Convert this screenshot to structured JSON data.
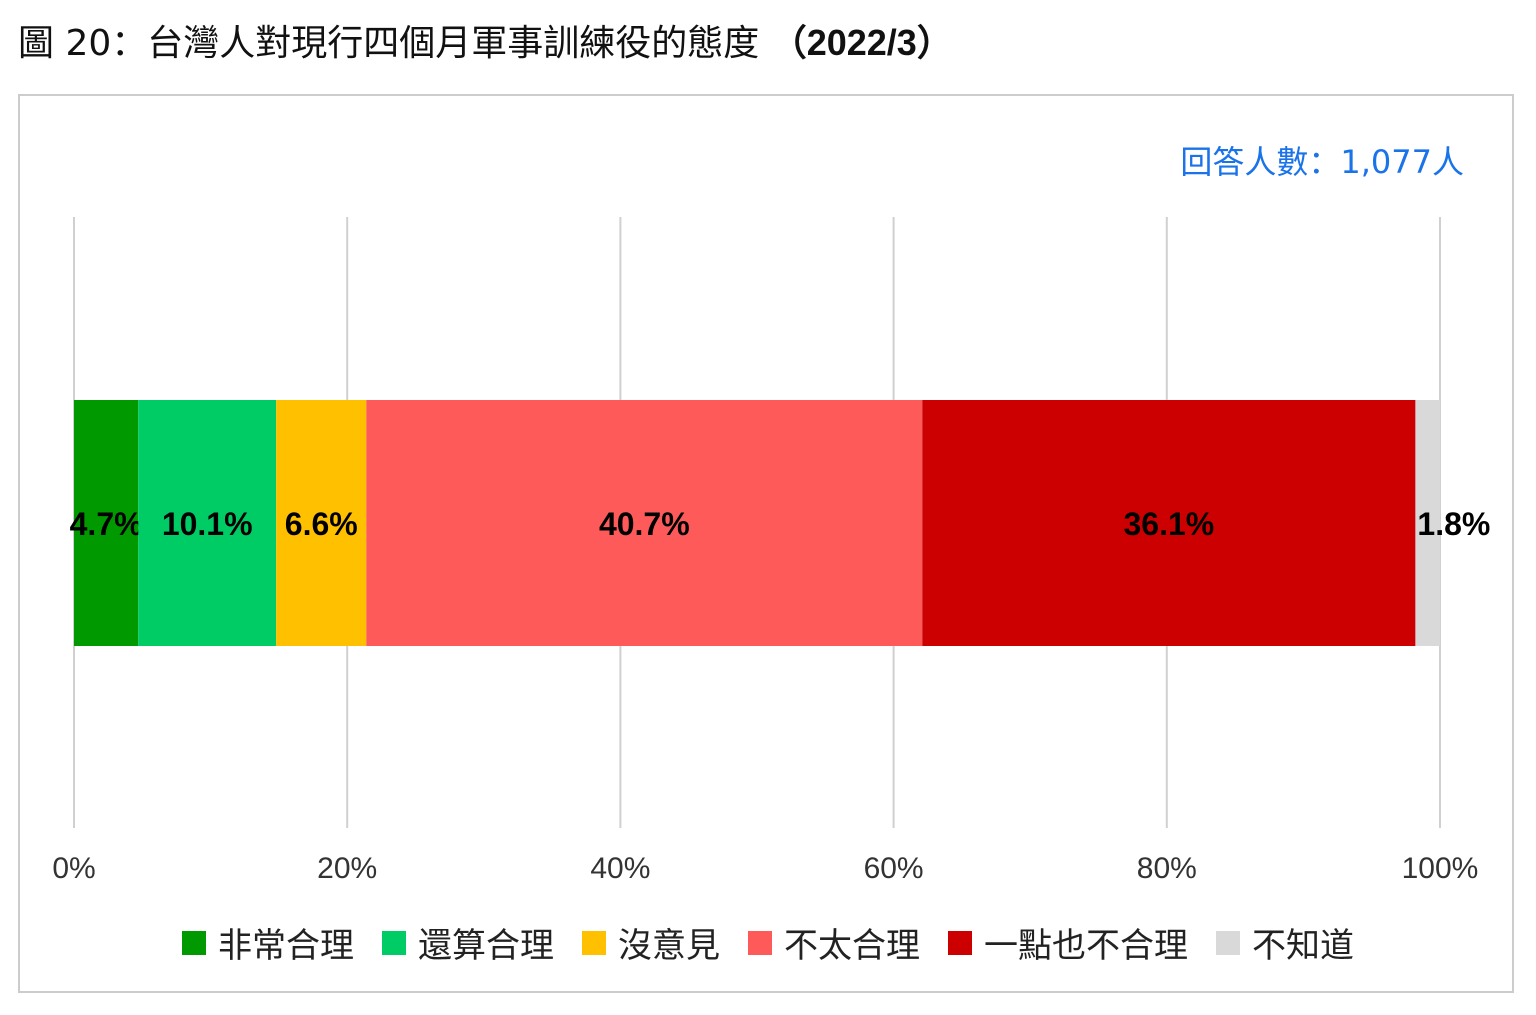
{
  "title": {
    "prefix": "圖 20：",
    "text": "台灣人對現行四個月軍事訓練役的態度 ",
    "date": "（2022/3）"
  },
  "respondents": "回答人數：1,077人",
  "chart_data": {
    "type": "bar",
    "orientation": "horizontal-stacked-100",
    "xlim": [
      0,
      100
    ],
    "xticks": [
      "0%",
      "20%",
      "40%",
      "60%",
      "80%",
      "100%"
    ],
    "grid": true,
    "legend_position": "bottom",
    "series": [
      {
        "name": "非常合理",
        "value": 4.7,
        "label": "4.7%",
        "color": "#009900"
      },
      {
        "name": "還算合理",
        "value": 10.1,
        "label": "10.1%",
        "color": "#00cc66"
      },
      {
        "name": "沒意見",
        "value": 6.6,
        "label": "6.6%",
        "color": "#ffc000"
      },
      {
        "name": "不太合理",
        "value": 40.7,
        "label": "40.7%",
        "color": "#ff5a5a"
      },
      {
        "name": "一點也不合理",
        "value": 36.1,
        "label": "36.1%",
        "color": "#cc0000"
      },
      {
        "name": "不知道",
        "value": 1.8,
        "label": "1.8%",
        "color": "#d9d9d9"
      }
    ]
  }
}
